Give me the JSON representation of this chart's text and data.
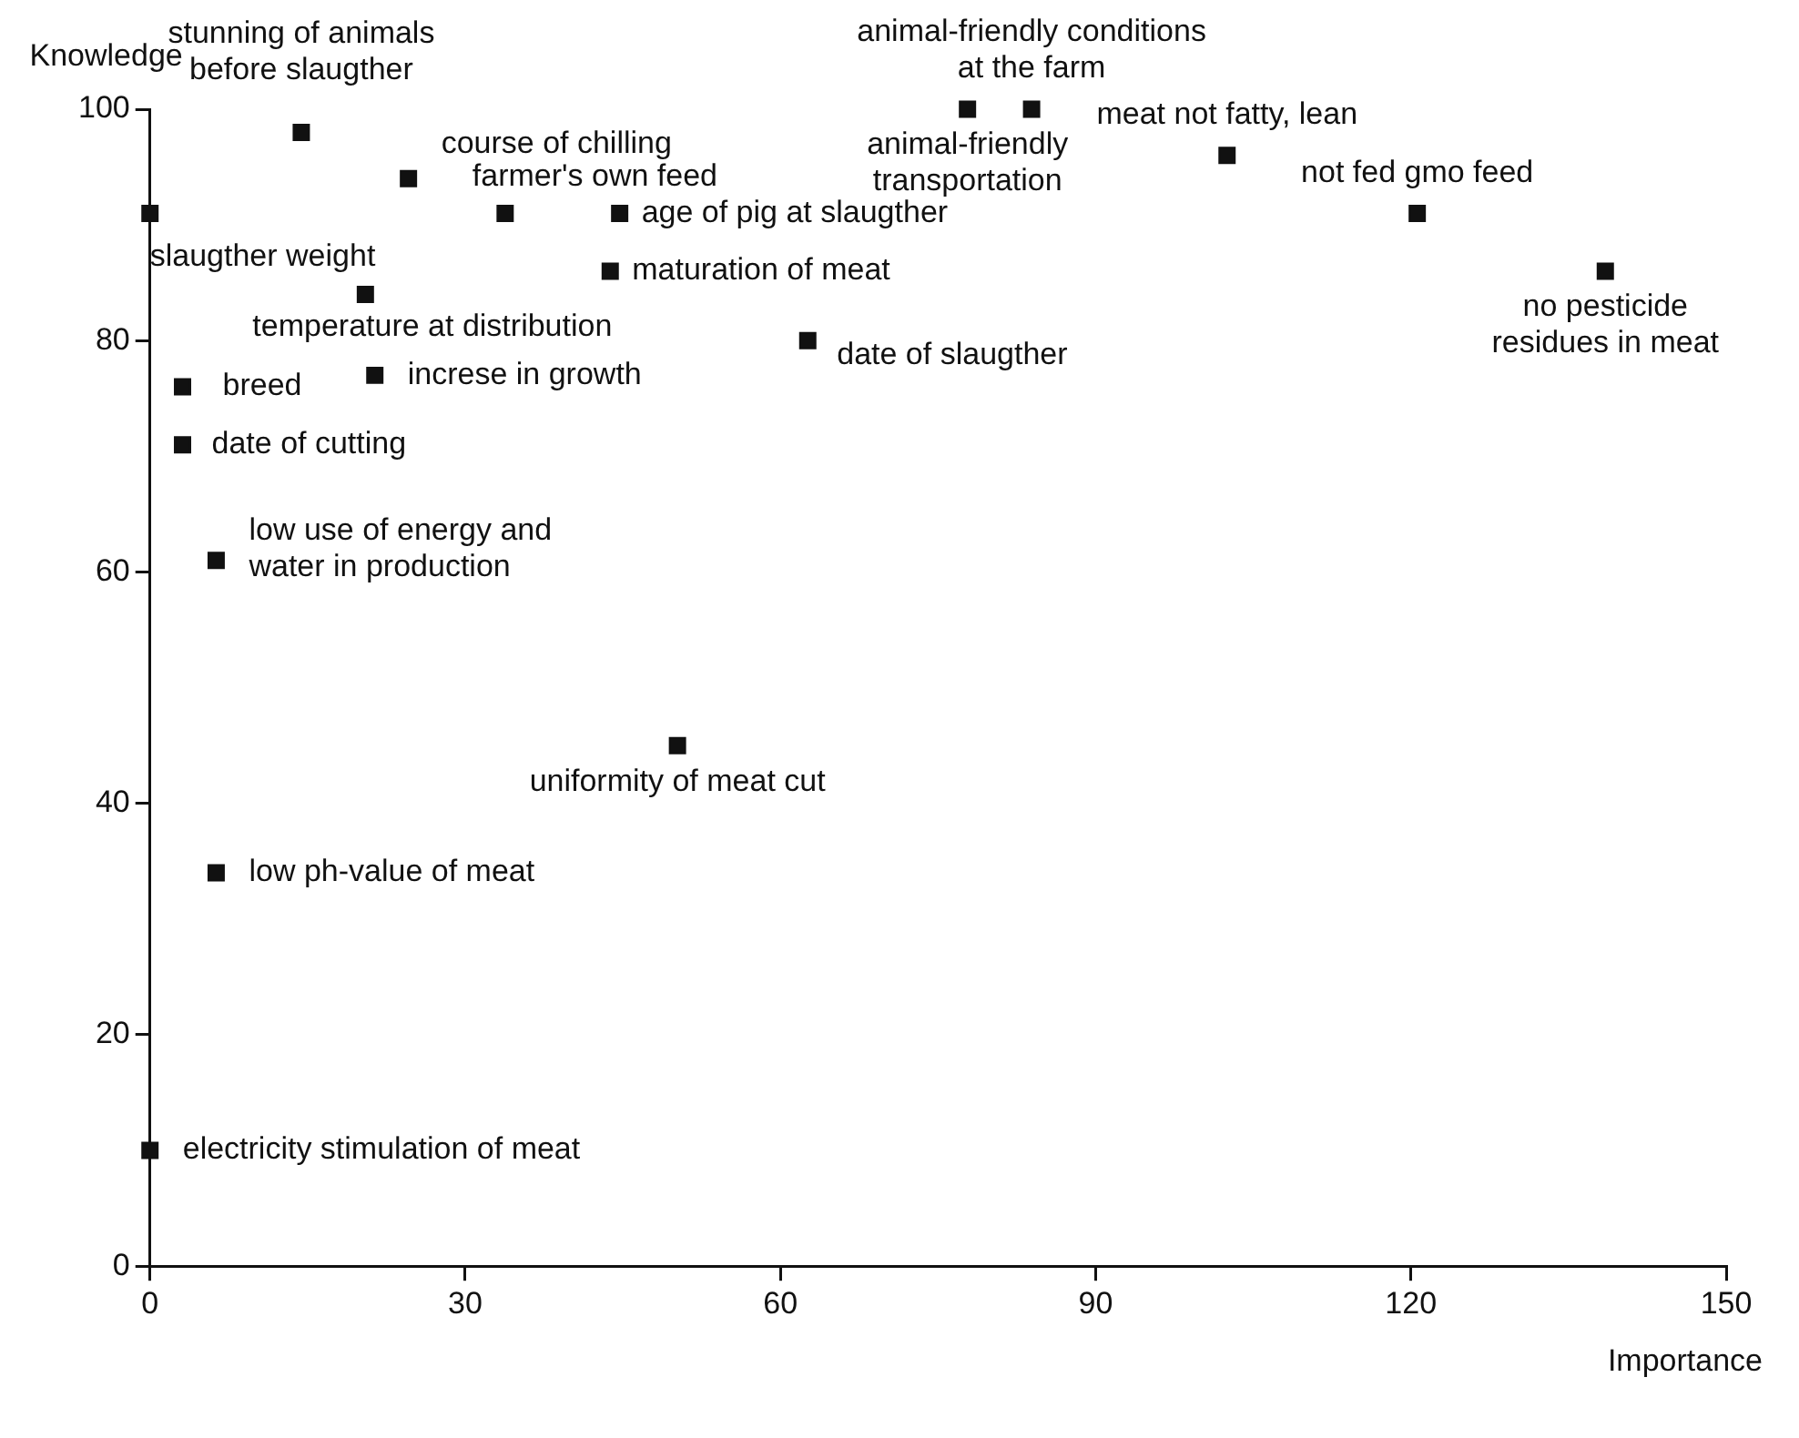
{
  "chart_data": {
    "type": "scatter",
    "xlabel": "Importance",
    "ylabel": "Knowledge",
    "marker": "square",
    "color": "#111111",
    "xlim": [
      0,
      150
    ],
    "xticks": [
      0,
      30,
      60,
      90,
      120,
      150
    ],
    "ylim": [
      0,
      100
    ],
    "yticks": [
      0,
      20,
      40,
      60,
      80,
      100
    ],
    "x": [
      0,
      14.4,
      24.6,
      33.8,
      44.7,
      43.8,
      20.5,
      21.4,
      3.1,
      3.1,
      6.3,
      62.6,
      77.8,
      83.9,
      102.5,
      120.6,
      138.5,
      50.2,
      6.3,
      0
    ],
    "values": [
      91,
      98,
      94,
      91,
      91,
      86,
      84,
      77,
      76,
      71,
      61,
      80,
      100,
      100,
      96,
      91,
      86,
      45,
      34,
      10
    ],
    "annotations": [
      {
        "text": "slaugther weight",
        "x": 0,
        "y": 91
      },
      {
        "text": "stunning of animals\nbefore slaugther",
        "x": 14.4,
        "y": 98
      },
      {
        "text": "course of chilling",
        "x": 24.6,
        "y": 94
      },
      {
        "text": "farmer's own feed",
        "x": 33.8,
        "y": 91
      },
      {
        "text": "age of pig at slaugther",
        "x": 44.7,
        "y": 91
      },
      {
        "text": "maturation of meat",
        "x": 43.8,
        "y": 86
      },
      {
        "text": "temperature at distribution",
        "x": 20.5,
        "y": 84
      },
      {
        "text": "increse in growth",
        "x": 21.4,
        "y": 77
      },
      {
        "text": "breed",
        "x": 3.1,
        "y": 76
      },
      {
        "text": "date of cutting",
        "x": 3.1,
        "y": 71
      },
      {
        "text": "low use of energy and\nwater in production",
        "x": 6.3,
        "y": 61
      },
      {
        "text": "date of slaugther",
        "x": 62.6,
        "y": 80
      },
      {
        "text": "animal-friendly\ntransportation",
        "x": 77.8,
        "y": 100
      },
      {
        "text": "animal-friendly conditions\nat the farm",
        "x": 83.9,
        "y": 100
      },
      {
        "text": "meat not fatty, lean",
        "x": 102.5,
        "y": 96
      },
      {
        "text": "not fed gmo feed",
        "x": 120.6,
        "y": 91
      },
      {
        "text": "no pesticide\nresidues in meat",
        "x": 138.5,
        "y": 86
      },
      {
        "text": "uniformity of meat cut",
        "x": 50.2,
        "y": 45
      },
      {
        "text": "low ph-value of meat",
        "x": 6.3,
        "y": 34
      },
      {
        "text": "electricity stimulation of meat",
        "x": 0,
        "y": 10
      }
    ]
  }
}
